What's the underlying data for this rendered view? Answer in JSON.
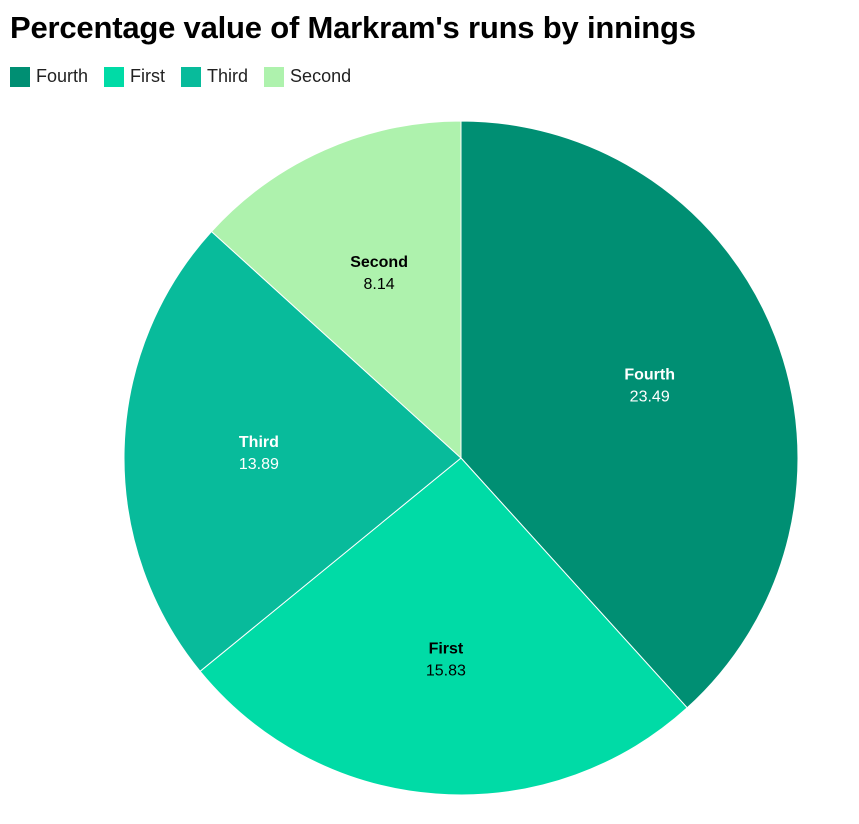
{
  "chart_data": {
    "type": "pie",
    "title": "Percentage value of Markram's runs by innings",
    "legend_position": "top-left",
    "slices": [
      {
        "name": "Fourth",
        "value": 23.49,
        "display": "23.49",
        "color": "#008f73",
        "label_color": "#ffffff"
      },
      {
        "name": "First",
        "value": 15.83,
        "display": "15.83",
        "color": "#00dba6",
        "label_color": "#000000"
      },
      {
        "name": "Third",
        "value": 13.89,
        "display": "13.89",
        "color": "#08bb9b",
        "label_color": "#ffffff"
      },
      {
        "name": "Second",
        "value": 8.14,
        "display": "8.14",
        "color": "#aef2ad",
        "label_color": "#000000"
      }
    ]
  }
}
